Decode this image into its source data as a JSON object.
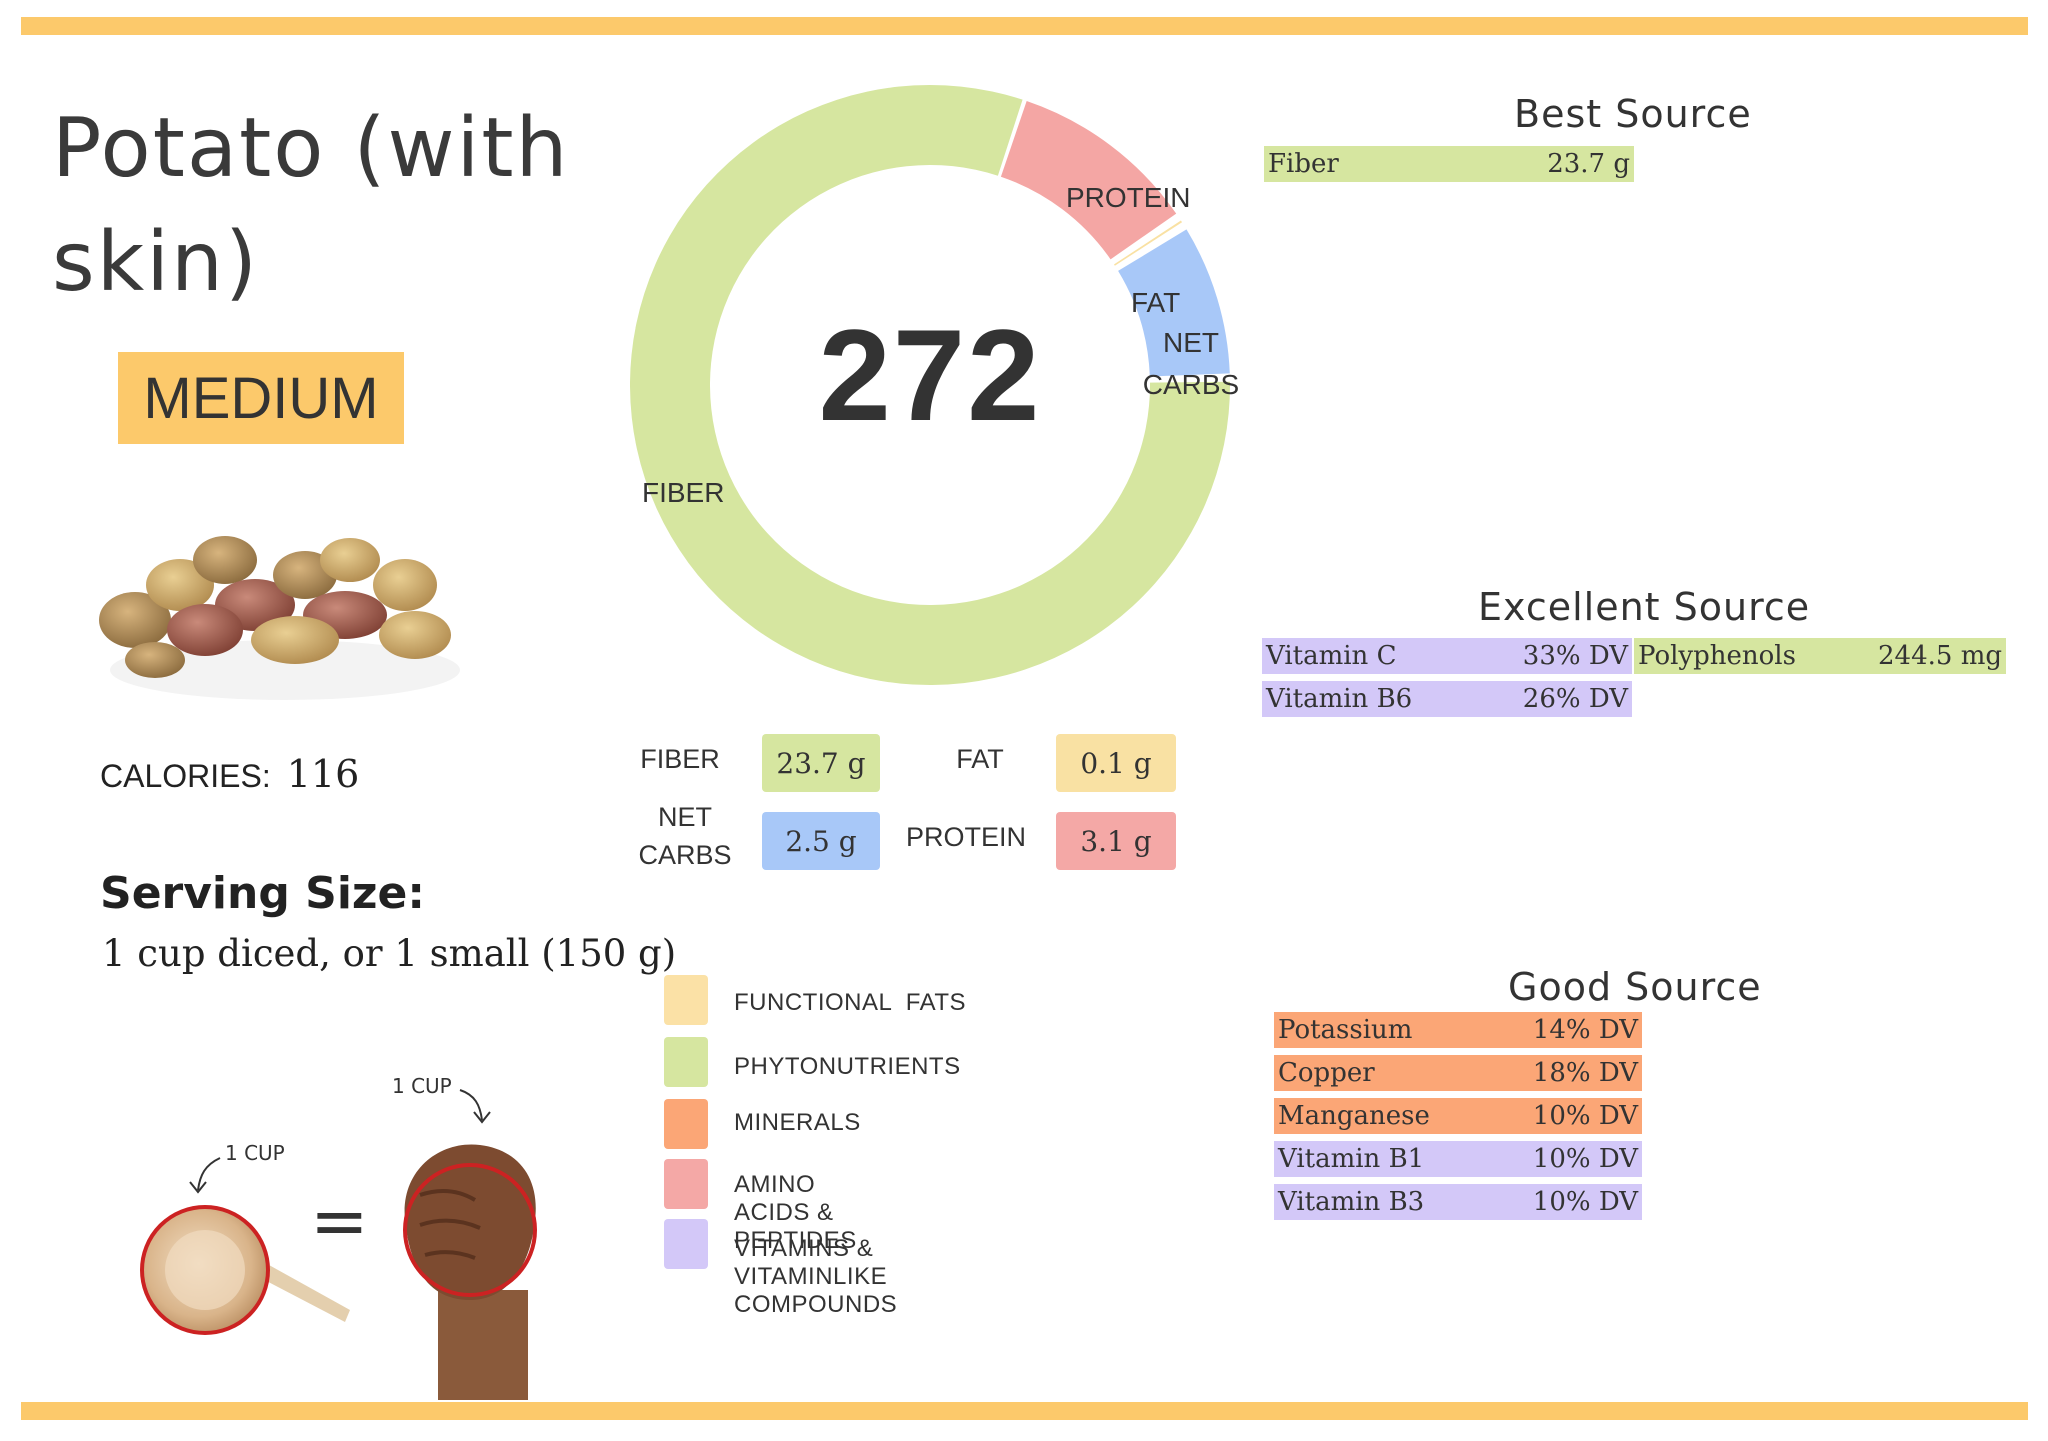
{
  "food": {
    "title": "Potato (with skin)",
    "rating": "MEDIUM",
    "calories_label": "CALORIES:",
    "calories_value": "116",
    "serving_label": "Serving Size:",
    "serving_value": "1 cup diced, or 1 small (150 g)"
  },
  "donut": {
    "center_value": "272",
    "segments": [
      {
        "name": "FIBER",
        "label": "FIBER",
        "grams": 23.7,
        "color": "#d6e6a0"
      },
      {
        "name": "PROTEIN",
        "label": "PROTEIN",
        "grams": 3.1,
        "color": "#f4a6a4"
      },
      {
        "name": "FAT",
        "label": "FAT",
        "grams": 0.1,
        "color": "#f9e1a3"
      },
      {
        "name": "NET CARBS",
        "label": "NET CARBS",
        "grams": 2.5,
        "color": "#a8c8f8"
      }
    ]
  },
  "macros": {
    "fiber_label": "FIBER",
    "fiber_value": "23.7 g",
    "fat_label": "FAT",
    "fat_value": "0.1 g",
    "netcarbs_label_1": "NET",
    "netcarbs_label_2": "CARBS",
    "netcarbs_value": "2.5 g",
    "protein_label": "PROTEIN",
    "protein_value": "3.1 g"
  },
  "legend": [
    {
      "label": "FUNCTIONAL  FATS",
      "color": "#fbe1a6"
    },
    {
      "label": "PHYTONUTRIENTS",
      "color": "#d6e6a0"
    },
    {
      "label": "MINERALS",
      "color": "#fba676"
    },
    {
      "label": "AMINO ACIDS & PEPTIDES",
      "color": "#f4a8a6"
    },
    {
      "label": "VITAMINS & VITAMINLIKE COMPOUNDS",
      "color": "#d3c8f8"
    }
  ],
  "illustration": {
    "cup_label_left": "1 CUP",
    "cup_label_right": "1 CUP",
    "equals": "="
  },
  "best_source": {
    "heading": "Best Source",
    "items": [
      {
        "name": "Fiber",
        "value": "23.7 g",
        "color": "#d6e6a0"
      }
    ]
  },
  "excellent_source": {
    "heading": "Excellent Source",
    "items": [
      {
        "name": "Vitamin C",
        "value": "33% DV",
        "color": "#d3c8f8"
      },
      {
        "name": "Polyphenols",
        "value": "244.5 mg",
        "color": "#d6e6a0"
      },
      {
        "name": "Vitamin B6",
        "value": "26% DV",
        "color": "#d3c8f8"
      }
    ]
  },
  "good_source": {
    "heading": "Good Source",
    "items": [
      {
        "name": "Potassium",
        "value": "14% DV",
        "color": "#fba676"
      },
      {
        "name": "Copper",
        "value": "18% DV",
        "color": "#fba676"
      },
      {
        "name": "Manganese",
        "value": "10% DV",
        "color": "#fba676"
      },
      {
        "name": "Vitamin B1",
        "value": "10% DV",
        "color": "#d3c8f8"
      },
      {
        "name": "Vitamin B3",
        "value": "10% DV",
        "color": "#d3c8f8"
      }
    ]
  }
}
